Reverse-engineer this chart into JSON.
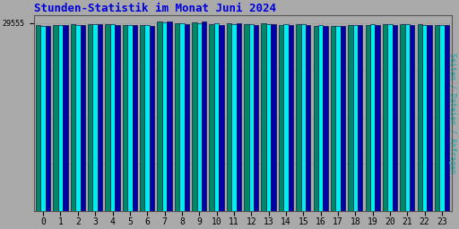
{
  "title": "Stunden-Statistik im Monat Juni 2024",
  "title_color": "#0000dd",
  "ylabel": "Seiten / Dateien / Anfragen",
  "ylabel_color": "#00aaaa",
  "xlabel_values": [
    "0",
    "1",
    "2",
    "3",
    "4",
    "5",
    "6",
    "7",
    "8",
    "9",
    "10",
    "11",
    "12",
    "13",
    "14",
    "15",
    "16",
    "17",
    "18",
    "19",
    "20",
    "21",
    "22",
    "23"
  ],
  "background_color": "#aaaaaa",
  "plot_bg_color": "#aaaaaa",
  "bar_color_cyan": "#00eeee",
  "bar_color_teal": "#008866",
  "bar_color_blue": "#0000aa",
  "bar_edge_color": "#000033",
  "ytick_label": "29555",
  "ytick_value": 29555,
  "ymax": 30800,
  "ymin": 0,
  "values_cyan": [
    29150,
    29250,
    29300,
    29400,
    29350,
    29250,
    29200,
    29650,
    29480,
    29540,
    29520,
    29410,
    29450,
    29350,
    29380,
    29420,
    29200,
    29100,
    29300,
    29350,
    29380,
    29400,
    29300,
    29230
  ],
  "values_teal": [
    29180,
    29280,
    29330,
    29430,
    29380,
    29280,
    29230,
    29850,
    29510,
    29660,
    29350,
    29490,
    29350,
    29480,
    29310,
    29350,
    29150,
    29130,
    29250,
    29310,
    29330,
    29360,
    29330,
    29260
  ],
  "values_blue": [
    29100,
    29200,
    29250,
    29350,
    29300,
    29200,
    29150,
    29780,
    29420,
    29780,
    29280,
    29580,
    29250,
    29420,
    29250,
    29280,
    29080,
    29040,
    29200,
    29250,
    29280,
    29300,
    29270,
    29180
  ]
}
